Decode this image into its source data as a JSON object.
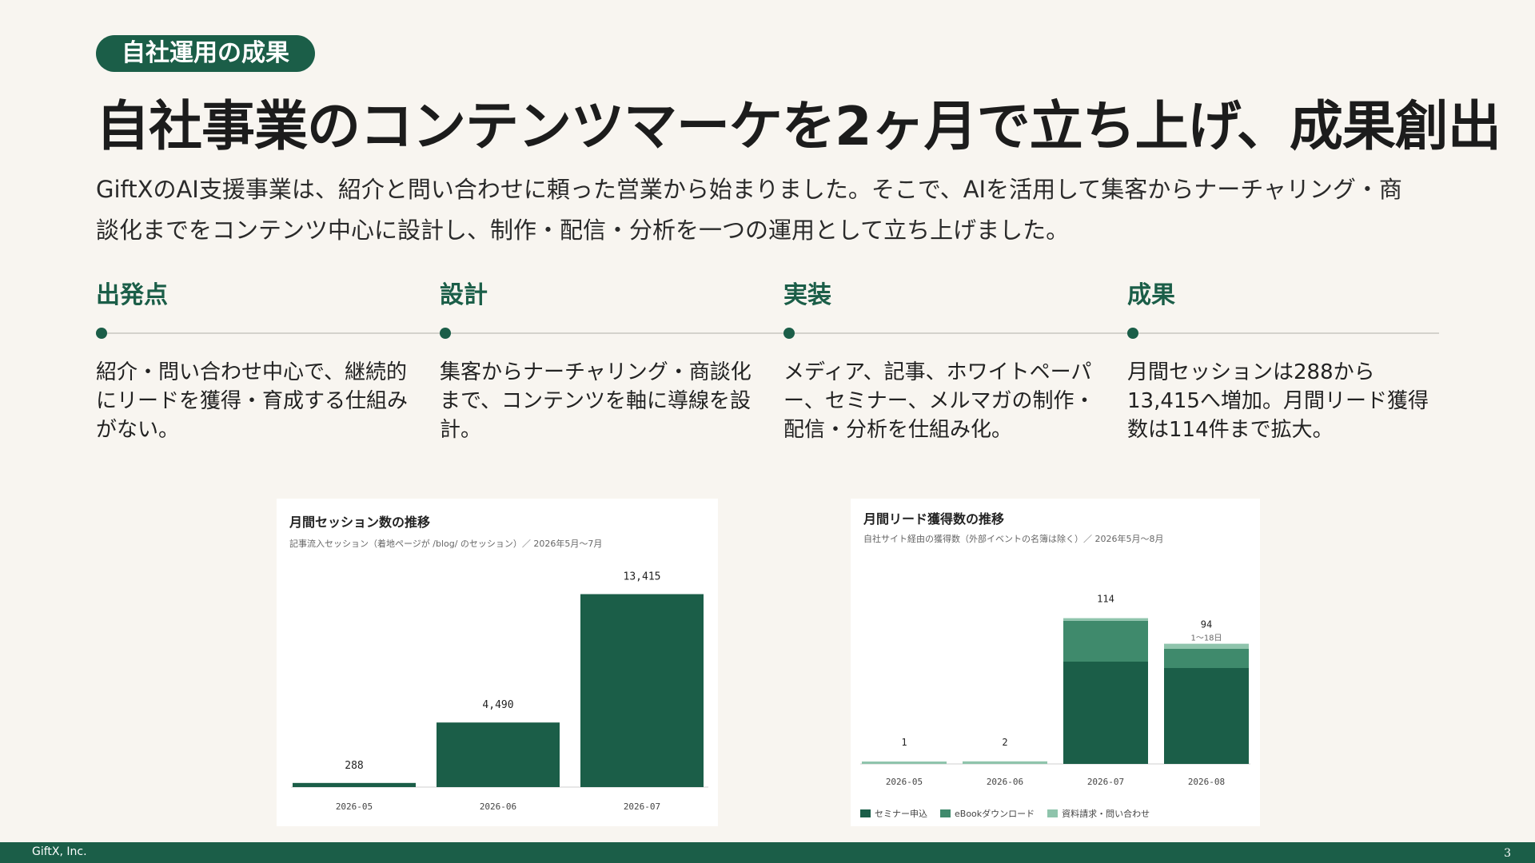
{
  "badge": "自社運用の成果",
  "title": "自社事業のコンテンツマーケを2ヶ月で立ち上げ、成果創出",
  "lead": "GiftXのAI支援事業は、紹介と問い合わせに頼った営業から始まりました。そこで、AIを活用して集客からナーチャリング・商談化までをコンテンツ中心に設計し、制作・配信・分析を一つの運用として立ち上げました。",
  "steps": [
    {
      "head": "出発点",
      "text": "紹介・問い合わせ中心で、継続的にリードを獲得・育成する仕組みがない。"
    },
    {
      "head": "設計",
      "text": "集客からナーチャリング・商談化まで、コンテンツを軸に導線を設計。"
    },
    {
      "head": "実装",
      "text": "メディア、記事、ホワイトペーパー、セミナー、メルマガの制作・配信・分析を仕組み化。"
    },
    {
      "head": "成果",
      "text": "月間セッションは288から13,415へ増加。月間リード獲得数は114件まで拡大。"
    }
  ],
  "colors": {
    "accent": "#1b5e48",
    "seg2": "#3f8a6c",
    "seg3": "#8fc4ac",
    "background": "#f8f5f0"
  },
  "chart_data": [
    {
      "type": "bar",
      "title": "月間セッション数の推移",
      "subtitle": "記事流入セッション（着地ページが /blog/ のセッション）／ 2026年5月〜7月",
      "categories": [
        "2026-05",
        "2026-06",
        "2026-07"
      ],
      "values": [
        288,
        4490,
        13415
      ],
      "value_labels": [
        "288",
        "4,490",
        "13,415"
      ],
      "ylim": [
        0,
        15000
      ],
      "grid": false,
      "legend": "none"
    },
    {
      "type": "bar",
      "stacked": true,
      "title": "月間リード獲得数の推移",
      "subtitle": "自社サイト経由の獲得数（外部イベントの名簿は除く）／ 2026年5月〜8月",
      "categories": [
        "2026-05",
        "2026-06",
        "2026-07",
        "2026-08"
      ],
      "series": [
        {
          "name": "セミナー申込",
          "values": [
            0,
            0,
            80,
            75
          ]
        },
        {
          "name": "eBookダウンロード",
          "values": [
            0,
            0,
            32,
            15
          ]
        },
        {
          "name": "資料請求・問い合わせ",
          "values": [
            1,
            2,
            2,
            4
          ]
        }
      ],
      "totals": [
        1,
        2,
        114,
        94
      ],
      "total_labels": [
        "1",
        "2",
        "114",
        "94"
      ],
      "annotations": [
        {
          "category": "2026-08",
          "text": "1〜18日"
        }
      ],
      "ylim": [
        0,
        130
      ],
      "grid": false,
      "legend": "bottom-left"
    }
  ],
  "footer": {
    "company": "GiftX, Inc.",
    "page": "3"
  }
}
